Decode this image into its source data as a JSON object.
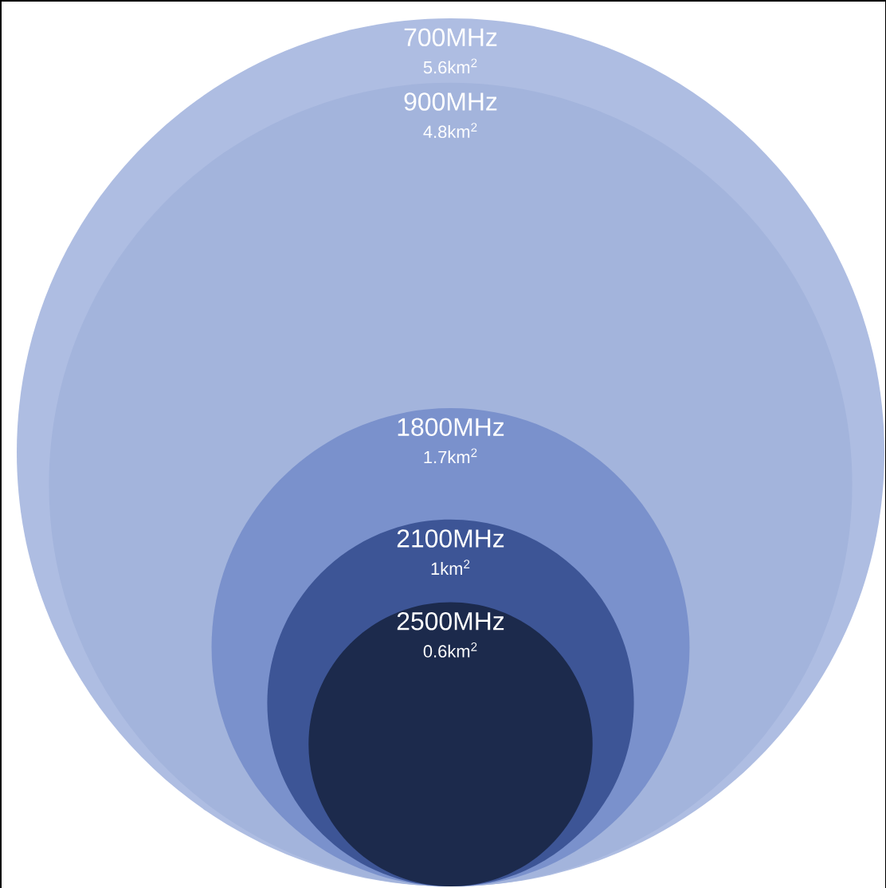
{
  "chart_data": {
    "type": "other",
    "categories": [
      "700MHz",
      "900MHz",
      "1800MHz",
      "2100MHz",
      "2500MHz"
    ],
    "values": [
      5.6,
      4.8,
      1.7,
      1,
      0.6
    ],
    "value_labels": [
      "5.6km$^{2}$",
      "4.8km$^{2}$",
      "1.7km$^{2}$",
      "1km$^{2}$",
      "0.6km$^{2}$"
    ],
    "colors": [
      "#aebde2",
      "#a3b4dc",
      "#7a91cc",
      "#3d5596",
      "#1c2a4c"
    ]
  }
}
